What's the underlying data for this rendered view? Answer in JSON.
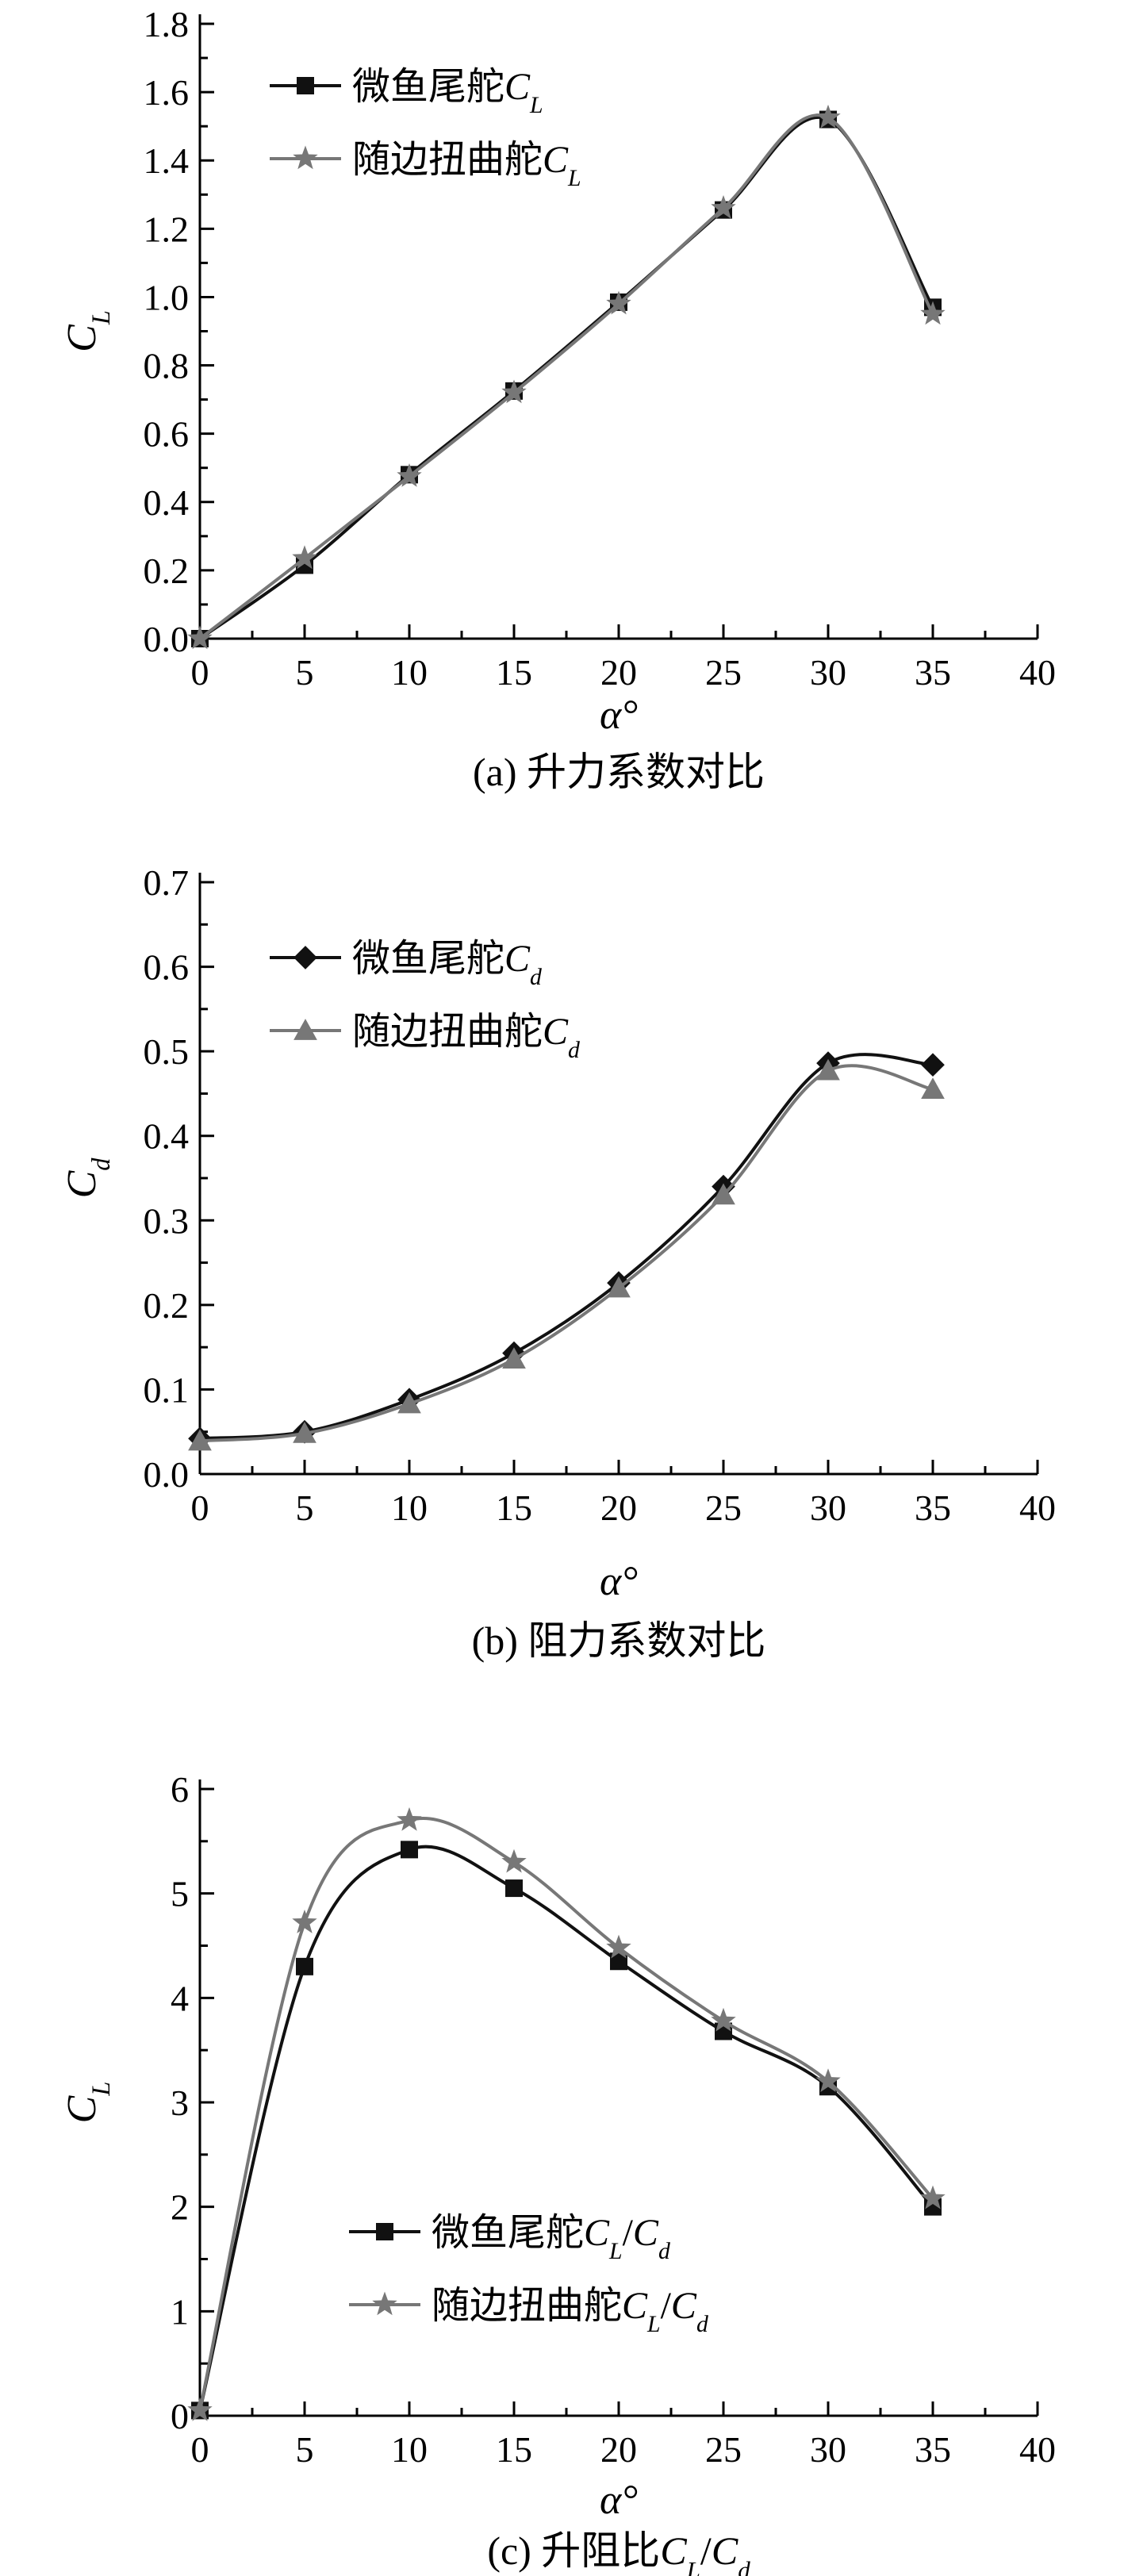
{
  "colors": {
    "series1": "#111111",
    "series2": "#777777"
  },
  "chart_data": [
    {
      "type": "line",
      "xlabel": "α°",
      "ylabel": "C_L",
      "caption": "(a) 升力系数对比",
      "xlim": [
        0,
        40
      ],
      "ylim": [
        0,
        1.8
      ],
      "xticks": [
        0,
        5,
        10,
        15,
        20,
        25,
        30,
        35,
        40
      ],
      "xtick_labels": [
        "0",
        "5",
        "10",
        "15",
        "20",
        "25",
        "30",
        "35",
        "40"
      ],
      "yticks": [
        0,
        0.2,
        0.4,
        0.6,
        0.8,
        1.0,
        1.2,
        1.4,
        1.6,
        1.8
      ],
      "ytick_labels": [
        "0.0",
        "0.2",
        "0.4",
        "0.6",
        "0.8",
        "1.0",
        "1.2",
        "1.4",
        "1.6",
        "1.8"
      ],
      "legend_position": "top-left",
      "series": [
        {
          "name": "微鱼尾舵C_L",
          "marker": "square",
          "x": [
            0,
            5,
            10,
            15,
            20,
            25,
            30,
            35
          ],
          "y": [
            0.0,
            0.215,
            0.48,
            0.725,
            0.985,
            1.255,
            1.52,
            0.97
          ]
        },
        {
          "name": "随边扭曲舵C_L",
          "marker": "star",
          "x": [
            0,
            5,
            10,
            15,
            20,
            25,
            30,
            35
          ],
          "y": [
            0.0,
            0.235,
            0.475,
            0.72,
            0.98,
            1.26,
            1.525,
            0.95
          ]
        }
      ]
    },
    {
      "type": "line",
      "xlabel": "α°",
      "ylabel": "C_d",
      "caption": "(b) 阻力系数对比",
      "xlim": [
        0,
        40
      ],
      "ylim": [
        0,
        0.7
      ],
      "xticks": [
        0,
        5,
        10,
        15,
        20,
        25,
        30,
        35,
        40
      ],
      "xtick_labels": [
        "0",
        "5",
        "10",
        "15",
        "20",
        "25",
        "30",
        "35",
        "40"
      ],
      "yticks": [
        0,
        0.1,
        0.2,
        0.3,
        0.4,
        0.5,
        0.6,
        0.7
      ],
      "ytick_labels": [
        "0.0",
        "0.1",
        "0.2",
        "0.3",
        "0.4",
        "0.5",
        "0.6",
        "0.7"
      ],
      "legend_position": "top-left",
      "series": [
        {
          "name": "微鱼尾舵C_d",
          "marker": "diamond",
          "x": [
            0,
            5,
            10,
            15,
            20,
            25,
            30,
            35
          ],
          "y": [
            0.042,
            0.05,
            0.088,
            0.143,
            0.226,
            0.34,
            0.486,
            0.484
          ]
        },
        {
          "name": "随边扭曲舵C_d",
          "marker": "triangle",
          "x": [
            0,
            5,
            10,
            15,
            20,
            25,
            30,
            35
          ],
          "y": [
            0.039,
            0.048,
            0.083,
            0.136,
            0.22,
            0.33,
            0.477,
            0.455
          ]
        }
      ]
    },
    {
      "type": "line",
      "xlabel": "α°",
      "ylabel": "C_L",
      "caption": "(c) 升阻比C_L/C_d",
      "xlim": [
        0,
        40
      ],
      "ylim": [
        0,
        6
      ],
      "xticks": [
        0,
        5,
        10,
        15,
        20,
        25,
        30,
        35,
        40
      ],
      "xtick_labels": [
        "0",
        "5",
        "10",
        "15",
        "20",
        "25",
        "30",
        "35",
        "40"
      ],
      "yticks": [
        0,
        1,
        2,
        3,
        4,
        5,
        6
      ],
      "ytick_labels": [
        "0",
        "1",
        "2",
        "3",
        "4",
        "5",
        "6"
      ],
      "legend_position": "bottom-center",
      "series": [
        {
          "name": "微鱼尾舵C_L/C_d",
          "marker": "square",
          "x": [
            0,
            5,
            10,
            15,
            20,
            25,
            30,
            35
          ],
          "y": [
            0.05,
            4.3,
            5.42,
            5.05,
            4.35,
            3.68,
            3.15,
            2.0
          ]
        },
        {
          "name": "随边扭曲舵C_L/C_d",
          "marker": "star",
          "x": [
            0,
            5,
            10,
            15,
            20,
            25,
            30,
            35
          ],
          "y": [
            0.05,
            4.72,
            5.7,
            5.3,
            4.48,
            3.78,
            3.2,
            2.08
          ]
        }
      ]
    }
  ]
}
